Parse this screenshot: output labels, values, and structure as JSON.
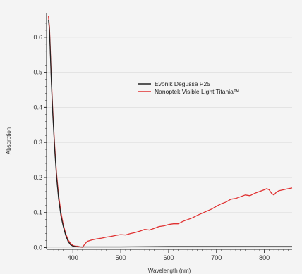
{
  "chart_data": {
    "type": "line",
    "title": "",
    "xlabel": "Wavelength (nm)",
    "ylabel": "Absorption",
    "xlim": [
      345,
      858
    ],
    "ylim": [
      -0.005,
      0.67
    ],
    "xticks": [
      400,
      500,
      600,
      700,
      800
    ],
    "xtick_labels": [
      "400",
      "500",
      "600",
      "700",
      "800"
    ],
    "yticks": [
      0.0,
      0.1,
      0.2,
      0.3,
      0.4,
      0.5,
      0.6
    ],
    "ytick_labels": [
      "0.0",
      "0.1",
      "0.2",
      "0.3",
      "0.4",
      "0.5",
      "0.6"
    ],
    "grid": true,
    "legend_position": "upper-middle-right",
    "series": [
      {
        "name": "Evonik Degussa P25",
        "color": "#222222",
        "points": [
          [
            349,
            0.65
          ],
          [
            351,
            0.62
          ],
          [
            353,
            0.55
          ],
          [
            355,
            0.47
          ],
          [
            358,
            0.38
          ],
          [
            362,
            0.28
          ],
          [
            366,
            0.2
          ],
          [
            370,
            0.14
          ],
          [
            375,
            0.09
          ],
          [
            380,
            0.06
          ],
          [
            385,
            0.035
          ],
          [
            390,
            0.018
          ],
          [
            395,
            0.008
          ],
          [
            400,
            0.004
          ],
          [
            410,
            0.002
          ],
          [
            430,
            0.002
          ],
          [
            500,
            0.002
          ],
          [
            600,
            0.003
          ],
          [
            700,
            0.003
          ],
          [
            800,
            0.003
          ],
          [
            858,
            0.003
          ]
        ]
      },
      {
        "name": "Nanoptek Visible Light Titania™",
        "color": "#e03030",
        "points": [
          [
            349,
            0.66
          ],
          [
            351,
            0.63
          ],
          [
            353,
            0.56
          ],
          [
            355,
            0.48
          ],
          [
            358,
            0.39
          ],
          [
            362,
            0.29
          ],
          [
            366,
            0.21
          ],
          [
            370,
            0.15
          ],
          [
            375,
            0.1
          ],
          [
            380,
            0.065
          ],
          [
            385,
            0.04
          ],
          [
            390,
            0.022
          ],
          [
            395,
            0.012
          ],
          [
            400,
            0.006
          ],
          [
            405,
            0.004
          ],
          [
            410,
            0.004
          ],
          [
            415,
            0.002
          ],
          [
            420,
            0.001
          ],
          [
            425,
            0.01
          ],
          [
            430,
            0.018
          ],
          [
            440,
            0.022
          ],
          [
            450,
            0.025
          ],
          [
            460,
            0.027
          ],
          [
            470,
            0.03
          ],
          [
            480,
            0.032
          ],
          [
            490,
            0.035
          ],
          [
            500,
            0.037
          ],
          [
            510,
            0.036
          ],
          [
            520,
            0.04
          ],
          [
            530,
            0.043
          ],
          [
            540,
            0.047
          ],
          [
            550,
            0.052
          ],
          [
            560,
            0.05
          ],
          [
            570,
            0.055
          ],
          [
            580,
            0.06
          ],
          [
            590,
            0.062
          ],
          [
            600,
            0.066
          ],
          [
            610,
            0.068
          ],
          [
            620,
            0.068
          ],
          [
            630,
            0.075
          ],
          [
            640,
            0.08
          ],
          [
            650,
            0.085
          ],
          [
            660,
            0.092
          ],
          [
            670,
            0.098
          ],
          [
            680,
            0.104
          ],
          [
            690,
            0.11
          ],
          [
            700,
            0.118
          ],
          [
            710,
            0.125
          ],
          [
            720,
            0.13
          ],
          [
            730,
            0.138
          ],
          [
            740,
            0.14
          ],
          [
            750,
            0.145
          ],
          [
            760,
            0.15
          ],
          [
            770,
            0.148
          ],
          [
            780,
            0.155
          ],
          [
            790,
            0.16
          ],
          [
            800,
            0.165
          ],
          [
            805,
            0.168
          ],
          [
            810,
            0.165
          ],
          [
            815,
            0.155
          ],
          [
            820,
            0.15
          ],
          [
            825,
            0.158
          ],
          [
            830,
            0.162
          ],
          [
            840,
            0.165
          ],
          [
            850,
            0.168
          ],
          [
            858,
            0.17
          ]
        ]
      }
    ]
  }
}
